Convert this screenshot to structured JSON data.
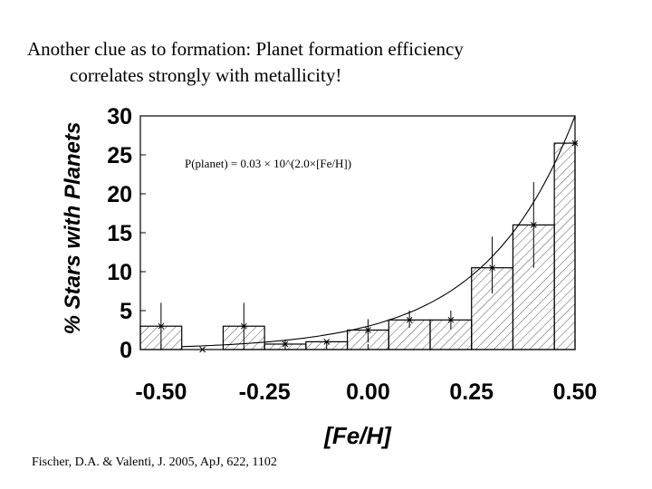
{
  "slide": {
    "title_line1": "Another clue as to formation: Planet formation efficiency",
    "title_line2": "correlates strongly with metallicity!",
    "citation": "Fischer, D.A. & Valenti, J. 2005, ApJ, 622, 1102"
  },
  "chart_data": {
    "type": "bar",
    "xlabel": "[Fe/H]",
    "ylabel": "% Stars with Planets",
    "xlim": [
      -0.55,
      0.5
    ],
    "ylim": [
      0,
      30
    ],
    "xticks": [
      "-0.50",
      "-0.25",
      "0.00",
      "0.25",
      "0.50"
    ],
    "xtick_values": [
      -0.5,
      -0.25,
      0.0,
      0.25,
      0.5
    ],
    "yticks": [
      "0",
      "5",
      "10",
      "15",
      "20",
      "25",
      "30"
    ],
    "ytick_values": [
      0,
      5,
      10,
      15,
      20,
      25,
      30
    ],
    "annotation": "P(planet) = 0.03 × 10^(2.0×[Fe/H])",
    "bins": [
      {
        "left": -0.55,
        "right": -0.45,
        "value": 3.0,
        "err_low": 0.0,
        "err_high": 6.0
      },
      {
        "left": -0.45,
        "right": -0.35,
        "value": 0.0,
        "err_low": 0.0,
        "err_high": 0.0
      },
      {
        "left": -0.35,
        "right": -0.25,
        "value": 3.0,
        "err_low": 0.0,
        "err_high": 6.0
      },
      {
        "left": -0.25,
        "right": -0.15,
        "value": 0.7,
        "err_low": 0.0,
        "err_high": 1.3
      },
      {
        "left": -0.15,
        "right": -0.05,
        "value": 1.0,
        "err_low": 0.0,
        "err_high": 1.0
      },
      {
        "left": -0.05,
        "right": 0.05,
        "value": 2.5,
        "err_low": 0.9,
        "err_high": 3.9
      },
      {
        "left": 0.05,
        "right": 0.15,
        "value": 3.8,
        "err_low": 2.8,
        "err_high": 5.0
      },
      {
        "left": 0.15,
        "right": 0.25,
        "value": 3.8,
        "err_low": 2.6,
        "err_high": 5.0
      },
      {
        "left": 0.25,
        "right": 0.35,
        "value": 10.5,
        "err_low": 7.2,
        "err_high": 14.5
      },
      {
        "left": 0.35,
        "right": 0.45,
        "value": 16.0,
        "err_low": 10.5,
        "err_high": 21.5
      },
      {
        "left": 0.45,
        "right": 0.5,
        "value": 26.5,
        "err_low": 13.0,
        "err_high": 30.0
      }
    ],
    "markers": [
      {
        "x": -0.5,
        "y": 3.0
      },
      {
        "x": -0.4,
        "y": 0.0
      },
      {
        "x": -0.3,
        "y": 3.0
      },
      {
        "x": -0.2,
        "y": 0.7
      },
      {
        "x": -0.1,
        "y": 1.0
      },
      {
        "x": 0.0,
        "y": 2.5
      },
      {
        "x": 0.1,
        "y": 3.8
      },
      {
        "x": 0.2,
        "y": 3.8
      },
      {
        "x": 0.3,
        "y": 10.5
      },
      {
        "x": 0.4,
        "y": 16.0
      },
      {
        "x": 0.5,
        "y": 26.5
      }
    ],
    "fit": {
      "coefficient": 0.03,
      "exponent": 2.0
    }
  }
}
